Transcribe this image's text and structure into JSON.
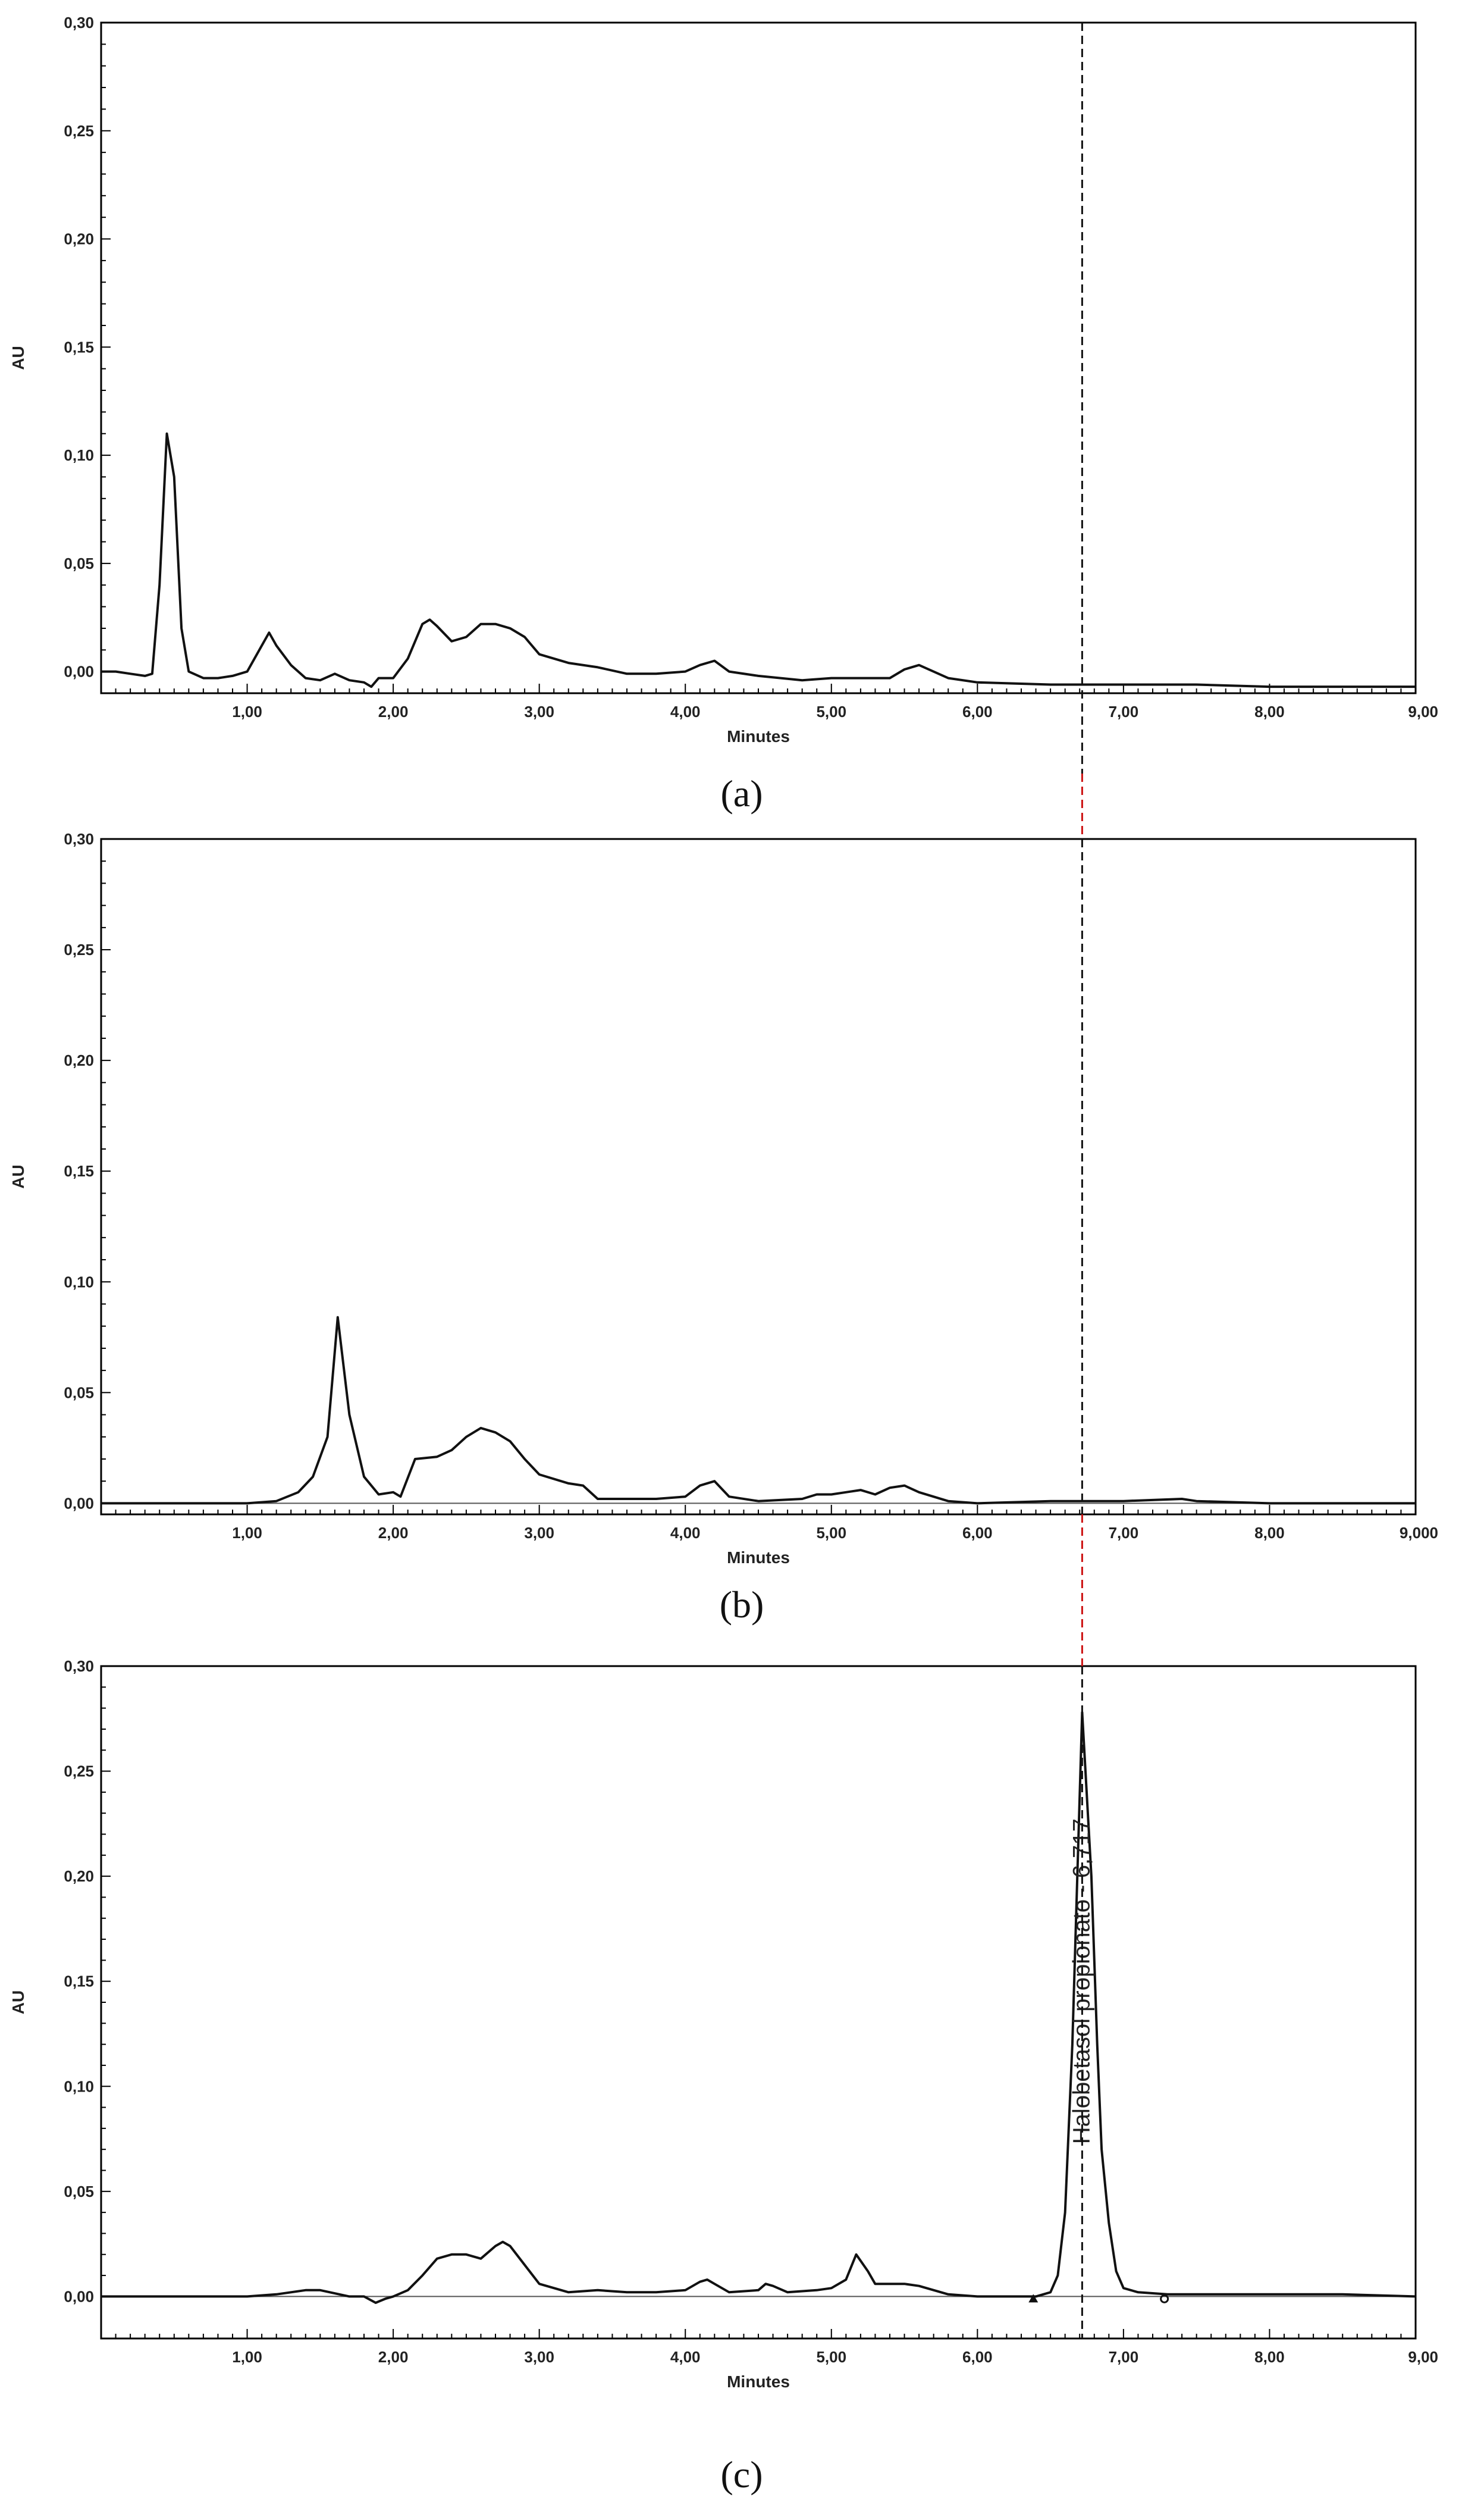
{
  "chart_data": [
    {
      "type": "line",
      "panel": "(a)",
      "xlabel": "Minutes",
      "ylabel": "AU",
      "xlim": [
        0,
        9
      ],
      "ylim": [
        -0.01,
        0.3
      ],
      "xticks": [
        "1,00",
        "2,00",
        "3,00",
        "4,00",
        "5,00",
        "6,00",
        "7,00",
        "8,00",
        "9,00"
      ],
      "yticks": [
        "0,00",
        "0,05",
        "0,10",
        "0,15",
        "0,20",
        "0,25",
        "0,30"
      ],
      "series": [
        {
          "x": [
            0.0,
            0.1,
            0.2,
            0.3,
            0.35,
            0.4,
            0.45,
            0.5,
            0.55,
            0.6,
            0.7,
            0.8,
            0.9,
            1.0,
            1.1,
            1.15,
            1.2,
            1.3,
            1.4,
            1.5,
            1.6,
            1.7,
            1.8,
            1.85,
            1.9,
            2.0,
            2.1,
            2.2,
            2.25,
            2.3,
            2.4,
            2.5,
            2.6,
            2.7,
            2.8,
            2.9,
            3.0,
            3.2,
            3.4,
            3.6,
            3.8,
            4.0,
            4.1,
            4.2,
            4.3,
            4.5,
            4.8,
            5.0,
            5.2,
            5.4,
            5.5,
            5.6,
            5.8,
            6.0,
            6.5,
            7.0,
            7.5,
            8.0,
            8.5,
            9.0
          ],
          "y": [
            0.0,
            0.0,
            -0.001,
            -0.002,
            -0.001,
            0.04,
            0.11,
            0.09,
            0.02,
            0.0,
            -0.003,
            -0.003,
            -0.002,
            0.0,
            0.012,
            0.018,
            0.012,
            0.003,
            -0.003,
            -0.004,
            -0.001,
            -0.004,
            -0.005,
            -0.007,
            -0.003,
            -0.003,
            0.006,
            0.022,
            0.024,
            0.021,
            0.014,
            0.016,
            0.022,
            0.022,
            0.02,
            0.016,
            0.008,
            0.004,
            0.002,
            -0.001,
            -0.001,
            0.0,
            0.003,
            0.005,
            0.0,
            -0.002,
            -0.004,
            -0.003,
            -0.003,
            -0.003,
            0.001,
            0.003,
            -0.003,
            -0.005,
            -0.006,
            -0.006,
            -0.006,
            -0.007,
            -0.007,
            -0.007
          ]
        }
      ]
    },
    {
      "type": "line",
      "panel": "(b)",
      "xlabel": "Minutes",
      "ylabel": "AU",
      "xlim": [
        0,
        9
      ],
      "ylim": [
        -0.005,
        0.3
      ],
      "xticks": [
        "1,00",
        "2,00",
        "3,00",
        "4,00",
        "5,00",
        "6,00",
        "7,00",
        "8,00",
        "9,000"
      ],
      "yticks": [
        "0,00",
        "0,05",
        "0,10",
        "0,15",
        "0,20",
        "0,25",
        "0,30"
      ],
      "series": [
        {
          "x": [
            0.0,
            0.5,
            1.0,
            1.2,
            1.35,
            1.45,
            1.55,
            1.62,
            1.7,
            1.8,
            1.9,
            2.0,
            2.05,
            2.15,
            2.3,
            2.4,
            2.5,
            2.6,
            2.7,
            2.8,
            2.9,
            3.0,
            3.2,
            3.3,
            3.4,
            3.6,
            3.8,
            4.0,
            4.1,
            4.2,
            4.3,
            4.5,
            4.8,
            4.9,
            5.0,
            5.1,
            5.2,
            5.3,
            5.4,
            5.5,
            5.6,
            5.8,
            6.0,
            6.5,
            7.0,
            7.4,
            7.5,
            8.0,
            8.5,
            9.0
          ],
          "y": [
            0.0,
            0.0,
            0.0,
            0.001,
            0.005,
            0.012,
            0.03,
            0.084,
            0.04,
            0.012,
            0.004,
            0.005,
            0.003,
            0.02,
            0.021,
            0.024,
            0.03,
            0.034,
            0.032,
            0.028,
            0.02,
            0.013,
            0.009,
            0.008,
            0.002,
            0.002,
            0.002,
            0.003,
            0.008,
            0.01,
            0.003,
            0.001,
            0.002,
            0.004,
            0.004,
            0.005,
            0.006,
            0.004,
            0.007,
            0.008,
            0.005,
            0.001,
            0.0,
            0.001,
            0.001,
            0.002,
            0.001,
            0.0,
            0.0,
            0.0
          ]
        }
      ]
    },
    {
      "type": "line",
      "panel": "(c)",
      "xlabel": "Minutes",
      "ylabel": "AU",
      "xlim": [
        0,
        9
      ],
      "ylim": [
        -0.02,
        0.3
      ],
      "xticks": [
        "1,00",
        "2,00",
        "3,00",
        "4,00",
        "5,00",
        "6,00",
        "7,00",
        "8,00",
        "9,00"
      ],
      "yticks": [
        "0,00",
        "0,05",
        "0,10",
        "0,15",
        "0,20",
        "0,25",
        "0,30"
      ],
      "annotations": [
        {
          "x": 6.717,
          "y": 0.278,
          "text": "Halobetasol propionato - 6,717"
        }
      ],
      "series": [
        {
          "x": [
            0.0,
            0.5,
            1.0,
            1.2,
            1.4,
            1.5,
            1.7,
            1.8,
            1.88,
            1.95,
            2.0,
            2.1,
            2.2,
            2.3,
            2.4,
            2.5,
            2.6,
            2.7,
            2.75,
            2.8,
            2.9,
            3.0,
            3.2,
            3.4,
            3.6,
            3.8,
            4.0,
            4.1,
            4.15,
            4.2,
            4.3,
            4.5,
            4.55,
            4.6,
            4.7,
            4.9,
            5.0,
            5.1,
            5.17,
            5.25,
            5.3,
            5.4,
            5.5,
            5.6,
            5.8,
            6.0,
            6.2,
            6.4,
            6.5,
            6.55,
            6.6,
            6.65,
            6.717,
            6.78,
            6.82,
            6.85,
            6.9,
            6.95,
            7.0,
            7.1,
            7.3,
            7.5,
            8.0,
            8.5,
            9.0
          ],
          "y": [
            0.0,
            0.0,
            0.0,
            0.001,
            0.003,
            0.003,
            0.0,
            0.0,
            -0.003,
            -0.001,
            0.0,
            0.003,
            0.01,
            0.018,
            0.02,
            0.02,
            0.018,
            0.024,
            0.026,
            0.024,
            0.015,
            0.006,
            0.002,
            0.003,
            0.002,
            0.002,
            0.003,
            0.007,
            0.008,
            0.006,
            0.002,
            0.003,
            0.006,
            0.005,
            0.002,
            0.003,
            0.004,
            0.008,
            0.02,
            0.012,
            0.006,
            0.006,
            0.006,
            0.005,
            0.001,
            0.0,
            0.0,
            0.0,
            0.002,
            0.01,
            0.04,
            0.12,
            0.278,
            0.2,
            0.12,
            0.07,
            0.035,
            0.012,
            0.004,
            0.002,
            0.001,
            0.001,
            0.001,
            0.001,
            0.0
          ]
        }
      ]
    }
  ],
  "captions": [
    "(a)",
    "(b)",
    "(c)"
  ],
  "marker_line_x": 6.717,
  "colors": {
    "trace": "#111111",
    "marker_line_upper": "#111111",
    "marker_line_red": "#cc1111"
  }
}
